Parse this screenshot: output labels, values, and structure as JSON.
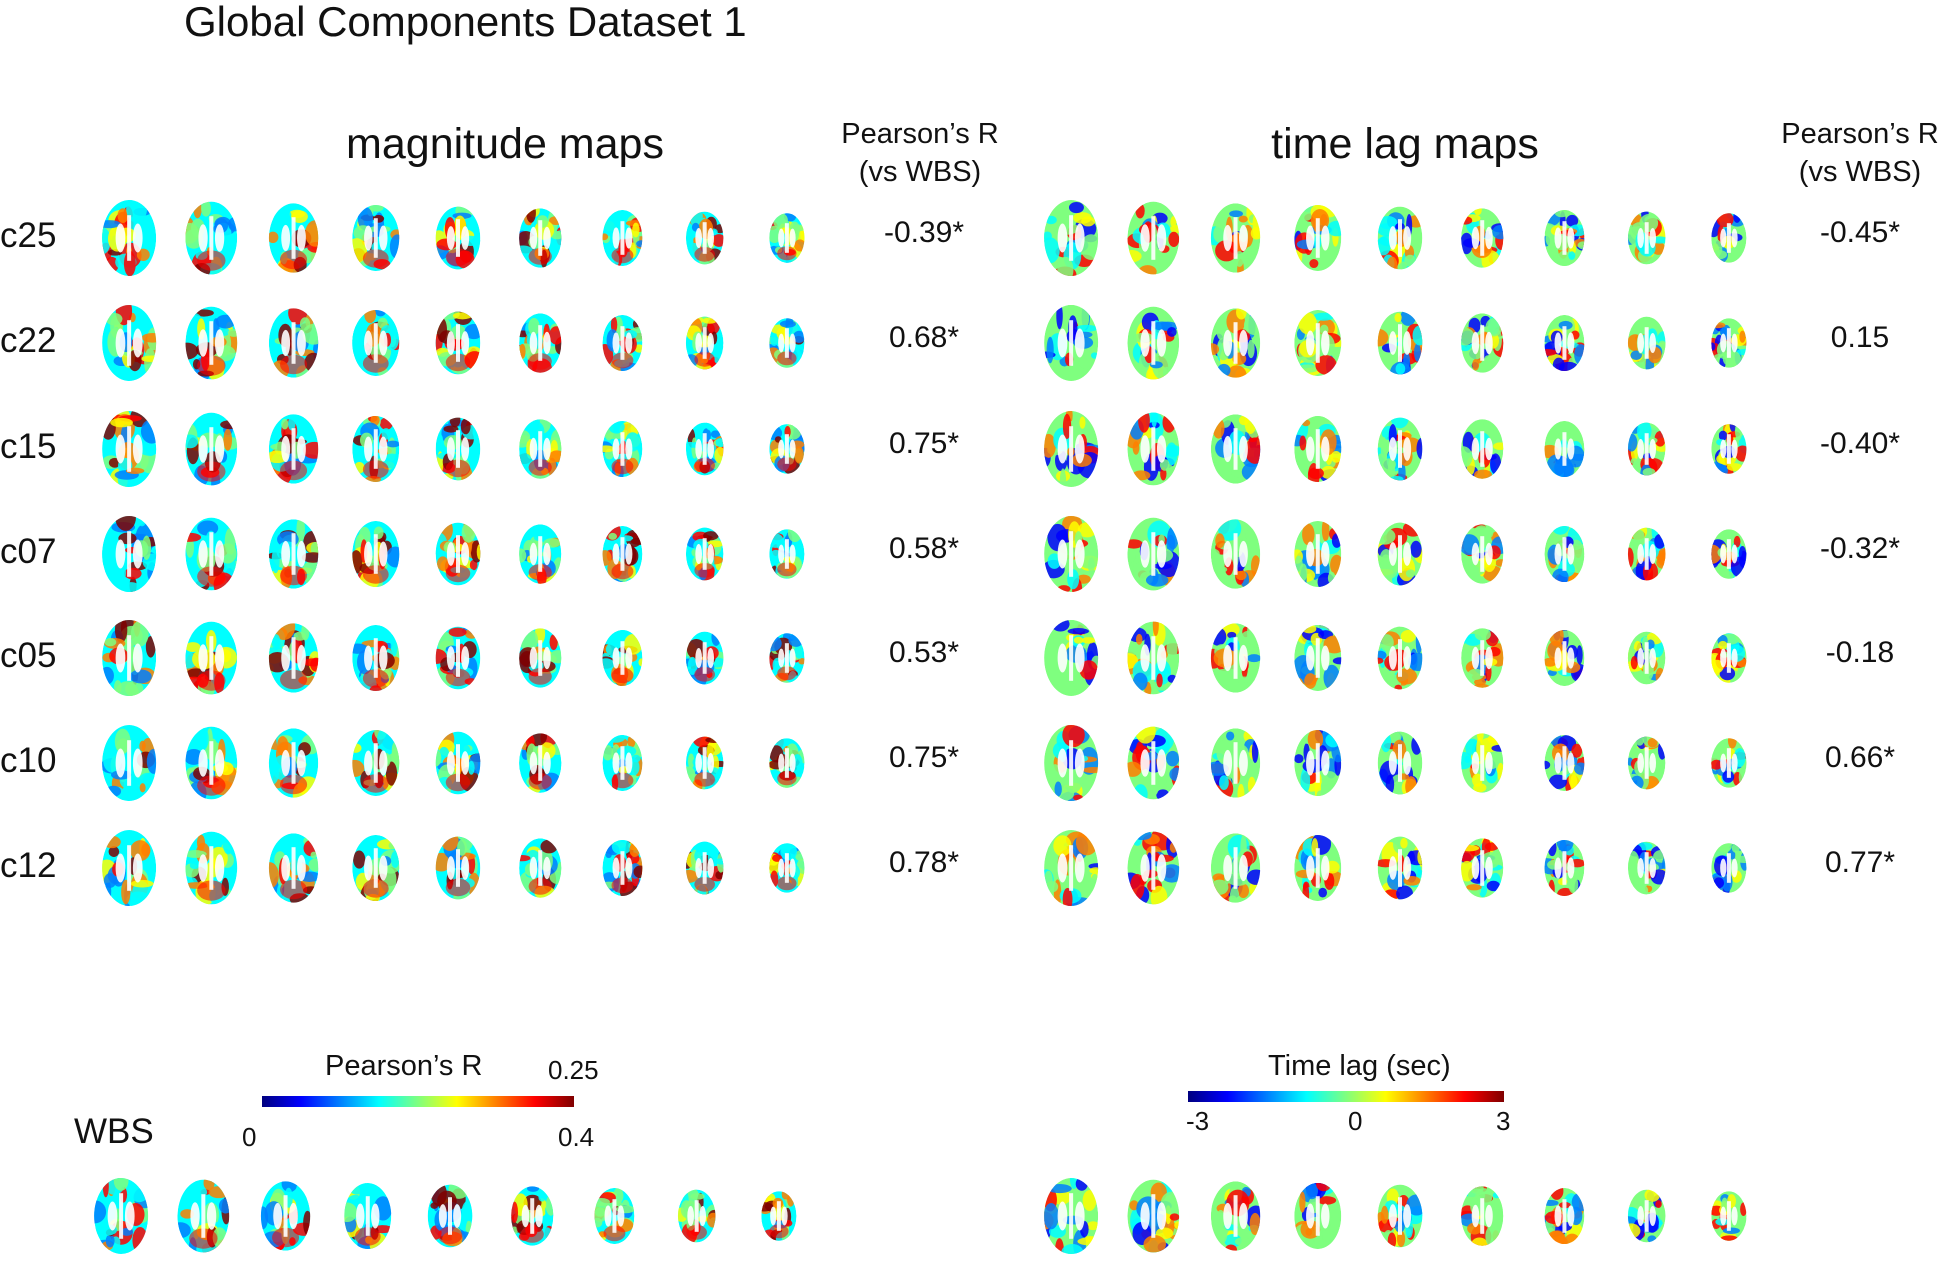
{
  "title": "Global Components Dataset 1",
  "magnitude_panel": {
    "title": "magnitude maps",
    "corr_header_line1": "Pearson’s R",
    "corr_header_line2": "(vs WBS)"
  },
  "timelag_panel": {
    "title": "time lag maps",
    "corr_header_line1": "Pearson’s R",
    "corr_header_line2": "(vs WBS)"
  },
  "rows": [
    {
      "label": "c25",
      "magnitude_r": "-0.39*",
      "timelag_r": "-0.45*"
    },
    {
      "label": "c22",
      "magnitude_r": "0.68*",
      "timelag_r": "0.15"
    },
    {
      "label": "c15",
      "magnitude_r": "0.75*",
      "timelag_r": "-0.40*"
    },
    {
      "label": "c07",
      "magnitude_r": "0.58*",
      "timelag_r": "-0.32*"
    },
    {
      "label": "c05",
      "magnitude_r": "0.53*",
      "timelag_r": "-0.18"
    },
    {
      "label": "c10",
      "magnitude_r": "0.75*",
      "timelag_r": "0.66*"
    },
    {
      "label": "c12",
      "magnitude_r": "0.78*",
      "timelag_r": "0.77*"
    }
  ],
  "slices_per_row": 9,
  "wbs": {
    "label": "WBS"
  },
  "magnitude_colorbar": {
    "label": "Pearson’s R",
    "tick_min": "0",
    "tick_max_upper": "0.25",
    "tick_max_lower": "0.4"
  },
  "timelag_colorbar": {
    "label": "Time lag (sec)",
    "tick_min": "-3",
    "tick_mid": "0",
    "tick_max": "3"
  },
  "colormap": "jet",
  "colors": {
    "jet": [
      "#00007f",
      "#0000ff",
      "#007fff",
      "#00ffff",
      "#7fff7f",
      "#ffff00",
      "#ff7f00",
      "#ff0000",
      "#7f0000"
    ]
  }
}
